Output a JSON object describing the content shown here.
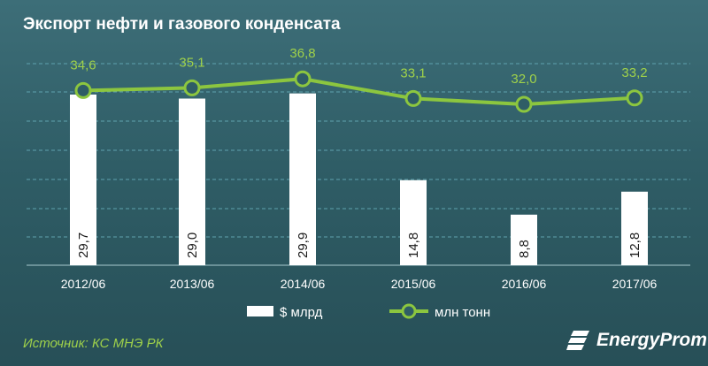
{
  "title": "Экспорт нефти и газового конденсата",
  "source": "Источник: КС МНЭ РК",
  "logo": "EnergyProm",
  "colors": {
    "bar": "#ffffff",
    "line": "#8cc63f",
    "line_label": "#9fd14a",
    "grid": "#5fa2ae"
  },
  "chart_data": {
    "type": "bar",
    "categories": [
      "2012/06",
      "2013/06",
      "2014/06",
      "2015/06",
      "2016/06",
      "2017/06"
    ],
    "series": [
      {
        "name": "$ млрд",
        "type": "bar",
        "values": [
          29.7,
          29.0,
          29.9,
          14.8,
          8.8,
          12.8
        ],
        "labels": [
          "29,7",
          "29,0",
          "29,9",
          "14,8",
          "8,8",
          "12,8"
        ]
      },
      {
        "name": "млн тонн",
        "type": "line",
        "values": [
          34.6,
          35.1,
          36.8,
          33.1,
          32.0,
          33.2
        ],
        "labels": [
          "34,6",
          "35,1",
          "36,8",
          "33,1",
          "32,0",
          "33,2"
        ]
      }
    ],
    "legend": [
      "$ млрд",
      "млн тонн"
    ],
    "legend_position": "bottom",
    "grid": true
  }
}
